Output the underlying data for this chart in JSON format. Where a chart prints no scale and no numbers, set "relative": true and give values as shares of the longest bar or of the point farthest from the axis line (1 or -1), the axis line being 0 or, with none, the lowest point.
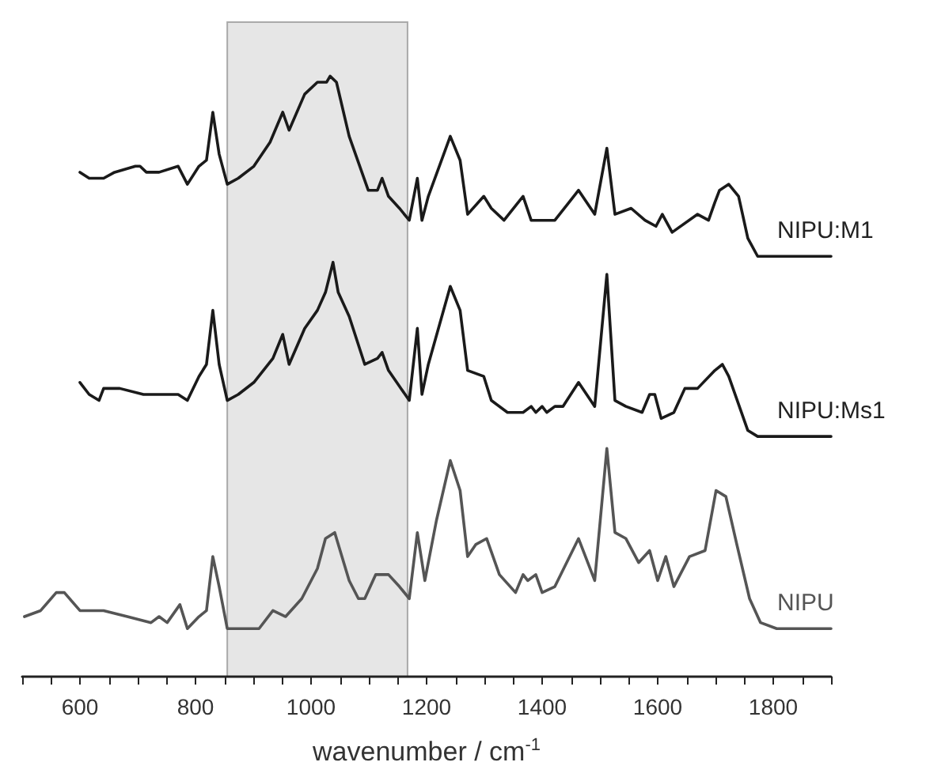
{
  "chart_data": {
    "type": "line",
    "relative": true,
    "marker": "none",
    "xlabel": "wavenumber / cm$^{-1}$",
    "xlim": [
      500,
      1900
    ],
    "xticks": [
      {
        "value": 500,
        "label": null
      },
      {
        "value": 550,
        "label": null
      },
      600,
      {
        "value": 650,
        "label": null
      },
      {
        "value": 700,
        "label": null
      },
      {
        "value": 750,
        "label": null
      },
      800,
      {
        "value": 850,
        "label": null
      },
      {
        "value": 900,
        "label": null
      },
      {
        "value": 950,
        "label": null
      },
      1000,
      {
        "value": 1050,
        "label": null
      },
      {
        "value": 1100,
        "label": null
      },
      {
        "value": 1150,
        "label": null
      },
      1200,
      {
        "value": 1250,
        "label": null
      },
      {
        "value": 1300,
        "label": null
      },
      {
        "value": 1350,
        "label": null
      },
      1400,
      {
        "value": 1450,
        "label": null
      },
      {
        "value": 1500,
        "label": null
      },
      {
        "value": 1550,
        "label": null
      },
      1600,
      {
        "value": 1650,
        "label": null
      },
      {
        "value": 1700,
        "label": null
      },
      {
        "value": 1750,
        "label": null
      },
      1800,
      {
        "value": 1850,
        "label": null
      },
      {
        "value": 1900,
        "label": null
      }
    ],
    "bands": [
      {
        "axis": "x",
        "from": 855,
        "to": 1167,
        "color": "#e6e6e6"
      }
    ],
    "series": [
      {
        "name": "NIPU:M1",
        "color": "#1a1a1a",
        "x": [
          600,
          616,
          641,
          660,
          696,
          704,
          715,
          737,
          770,
          786,
          806,
          819,
          830,
          841,
          855,
          874,
          901,
          929,
          951,
          962,
          989,
          1011,
          1027,
          1033,
          1044,
          1066,
          1099,
          1115,
          1123,
          1134,
          1153,
          1170,
          1184,
          1192,
          1203,
          1241,
          1258,
          1271,
          1299,
          1312,
          1334,
          1367,
          1381,
          1408,
          1422,
          1463,
          1491,
          1512,
          1526,
          1554,
          1578,
          1597,
          1608,
          1625,
          1669,
          1688,
          1699,
          1707,
          1723,
          1740,
          1756,
          1773,
          1800,
          1900
        ],
        "values": [
          0.84,
          0.83,
          0.83,
          0.84,
          0.85,
          0.85,
          0.84,
          0.84,
          0.85,
          0.82,
          0.85,
          0.86,
          0.94,
          0.87,
          0.82,
          0.83,
          0.85,
          0.89,
          0.94,
          0.91,
          0.97,
          0.99,
          0.99,
          1,
          0.99,
          0.9,
          0.81,
          0.81,
          0.83,
          0.8,
          0.78,
          0.76,
          0.83,
          0.76,
          0.8,
          0.9,
          0.86,
          0.77,
          0.8,
          0.78,
          0.76,
          0.8,
          0.76,
          0.76,
          0.76,
          0.81,
          0.77,
          0.88,
          0.77,
          0.78,
          0.76,
          0.75,
          0.77,
          0.74,
          0.77,
          0.76,
          0.79,
          0.81,
          0.82,
          0.8,
          0.73,
          0.7,
          0.7,
          0.7
        ]
      },
      {
        "name": "NIPU:Ms1",
        "color": "#1a1a1a",
        "x": [
          600,
          616,
          633,
          641,
          669,
          710,
          737,
          770,
          786,
          806,
          819,
          830,
          841,
          855,
          874,
          901,
          934,
          951,
          962,
          989,
          1011,
          1025,
          1038,
          1047,
          1066,
          1093,
          1115,
          1123,
          1134,
          1170,
          1184,
          1192,
          1203,
          1241,
          1258,
          1271,
          1299,
          1312,
          1340,
          1367,
          1381,
          1389,
          1400,
          1408,
          1422,
          1436,
          1463,
          1491,
          1512,
          1526,
          1545,
          1573,
          1586,
          1595,
          1606,
          1628,
          1647,
          1669,
          1699,
          1712,
          1723,
          1756,
          1773,
          1800,
          1900
        ],
        "values": [
          0.49,
          0.47,
          0.46,
          0.48,
          0.48,
          0.47,
          0.47,
          0.47,
          0.46,
          0.5,
          0.52,
          0.61,
          0.52,
          0.46,
          0.47,
          0.49,
          0.53,
          0.57,
          0.52,
          0.58,
          0.61,
          0.64,
          0.69,
          0.64,
          0.6,
          0.52,
          0.53,
          0.54,
          0.51,
          0.46,
          0.58,
          0.47,
          0.52,
          0.65,
          0.61,
          0.51,
          0.5,
          0.46,
          0.44,
          0.44,
          0.45,
          0.44,
          0.45,
          0.44,
          0.45,
          0.45,
          0.49,
          0.45,
          0.67,
          0.46,
          0.45,
          0.44,
          0.47,
          0.47,
          0.43,
          0.44,
          0.48,
          0.48,
          0.51,
          0.52,
          0.5,
          0.41,
          0.4,
          0.4,
          0.4
        ]
      },
      {
        "name": "NIPU",
        "color": "#555555",
        "x": [
          504,
          532,
          559,
          573,
          600,
          614,
          641,
          682,
          723,
          737,
          751,
          773,
          786,
          806,
          819,
          830,
          841,
          855,
          874,
          910,
          934,
          956,
          984,
          1011,
          1025,
          1041,
          1066,
          1082,
          1093,
          1112,
          1134,
          1153,
          1170,
          1184,
          1197,
          1217,
          1241,
          1258,
          1271,
          1285,
          1304,
          1326,
          1354,
          1367,
          1375,
          1389,
          1400,
          1422,
          1463,
          1491,
          1512,
          1526,
          1545,
          1567,
          1586,
          1600,
          1614,
          1628,
          1655,
          1682,
          1701,
          1718,
          1737,
          1759,
          1778,
          1806,
          1900
        ],
        "values": [
          0.1,
          0.11,
          0.14,
          0.14,
          0.11,
          0.11,
          0.11,
          0.1,
          0.09,
          0.1,
          0.09,
          0.12,
          0.08,
          0.1,
          0.11,
          0.2,
          0.15,
          0.08,
          0.08,
          0.08,
          0.11,
          0.1,
          0.13,
          0.18,
          0.23,
          0.24,
          0.16,
          0.13,
          0.13,
          0.17,
          0.17,
          0.15,
          0.13,
          0.24,
          0.16,
          0.26,
          0.36,
          0.31,
          0.2,
          0.22,
          0.23,
          0.17,
          0.14,
          0.17,
          0.16,
          0.17,
          0.14,
          0.15,
          0.23,
          0.16,
          0.38,
          0.24,
          0.23,
          0.19,
          0.21,
          0.16,
          0.2,
          0.15,
          0.2,
          0.21,
          0.31,
          0.3,
          0.22,
          0.13,
          0.09,
          0.08,
          0.08
        ]
      }
    ]
  }
}
